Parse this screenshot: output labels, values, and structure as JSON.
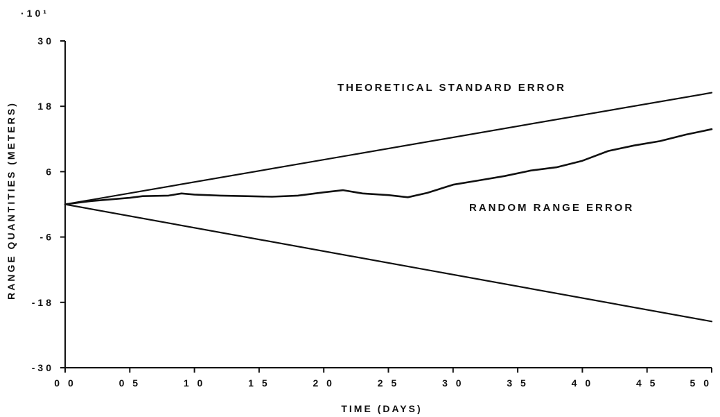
{
  "chart_data": {
    "type": "line",
    "multiplier_label": "·10¹",
    "xlabel": "TIME (DAYS)",
    "ylabel": "RANGE QUANTITIES (METERS)",
    "xlim": [
      0,
      5.0
    ],
    "ylim": [
      -30,
      30
    ],
    "x_ticks": [
      {
        "value": 0.0,
        "label": "0 0"
      },
      {
        "value": 0.5,
        "label": "0 5"
      },
      {
        "value": 1.0,
        "label": "1 0"
      },
      {
        "value": 1.5,
        "label": "1 5"
      },
      {
        "value": 2.0,
        "label": "2 0"
      },
      {
        "value": 2.5,
        "label": "2 5"
      },
      {
        "value": 3.0,
        "label": "3 0"
      },
      {
        "value": 3.5,
        "label": "3 5"
      },
      {
        "value": 4.0,
        "label": "4 0"
      },
      {
        "value": 4.5,
        "label": "4 5"
      },
      {
        "value": 5.0,
        "label": "5 0"
      }
    ],
    "y_ticks": [
      {
        "value": 30,
        "label": "30"
      },
      {
        "value": 18,
        "label": "18"
      },
      {
        "value": 6,
        "label": "6"
      },
      {
        "value": -6,
        "label": "-6"
      },
      {
        "value": -18,
        "label": "-18"
      },
      {
        "value": -30,
        "label": "-30"
      }
    ],
    "grid": false,
    "legend": "none",
    "annotations": [
      {
        "text": "THEORETICAL STANDARD ERROR",
        "series": "upper_bound"
      },
      {
        "text": "RANDOM RANGE ERROR",
        "series": "random_range_error"
      }
    ],
    "series": [
      {
        "key": "upper_bound",
        "x": [
          0.0,
          5.0
        ],
        "y": [
          0.0,
          20.5
        ]
      },
      {
        "key": "lower_bound",
        "x": [
          0.0,
          5.0
        ],
        "y": [
          0.0,
          -21.5
        ]
      },
      {
        "key": "random_range_error",
        "x": [
          0.0,
          0.2,
          0.3,
          0.5,
          0.6,
          0.8,
          0.9,
          1.0,
          1.2,
          1.4,
          1.6,
          1.8,
          2.0,
          2.15,
          2.3,
          2.5,
          2.65,
          2.8,
          3.0,
          3.2,
          3.4,
          3.6,
          3.8,
          4.0,
          4.2,
          4.4,
          4.6,
          4.8,
          5.0
        ],
        "y": [
          0.0,
          0.6,
          0.8,
          1.2,
          1.5,
          1.6,
          2.0,
          1.8,
          1.6,
          1.5,
          1.4,
          1.6,
          2.2,
          2.6,
          2.0,
          1.7,
          1.3,
          2.1,
          3.6,
          4.4,
          5.2,
          6.2,
          6.8,
          8.0,
          9.8,
          10.8,
          11.6,
          12.8,
          13.8
        ]
      }
    ]
  }
}
